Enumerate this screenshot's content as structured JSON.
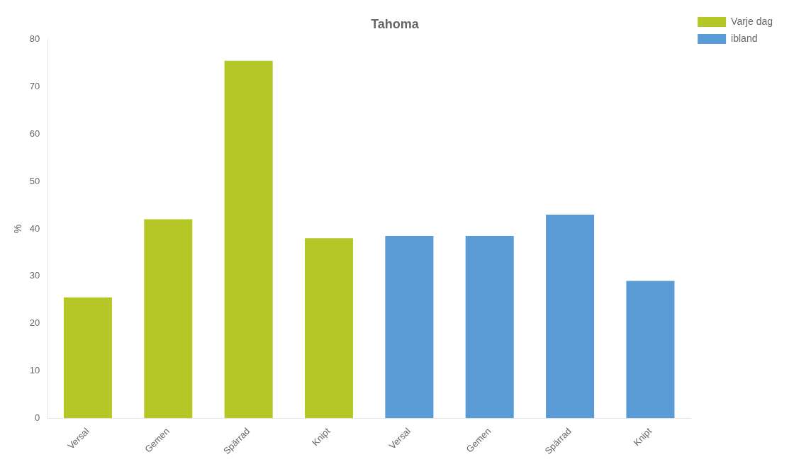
{
  "chart_data": {
    "type": "bar",
    "title": "Tahoma",
    "ylabel": "%",
    "categories": [
      "Versal",
      "Gemen",
      "Spärrad",
      "Knipt",
      "Versal",
      "Gemen",
      "Spärrad",
      "Knipt"
    ],
    "series": [
      {
        "name": "Varje dag",
        "color": "#b5c727",
        "values": [
          25.5,
          42.0,
          75.5,
          38.0,
          null,
          null,
          null,
          null
        ]
      },
      {
        "name": "ibland",
        "color": "#5b9bd5",
        "values": [
          null,
          null,
          null,
          null,
          38.5,
          38.5,
          43.0,
          29.0
        ]
      }
    ],
    "ylim": [
      0,
      80
    ],
    "yticks": [
      0,
      10,
      20,
      30,
      40,
      50,
      60,
      70,
      80
    ],
    "grid": false,
    "legend": "right"
  }
}
